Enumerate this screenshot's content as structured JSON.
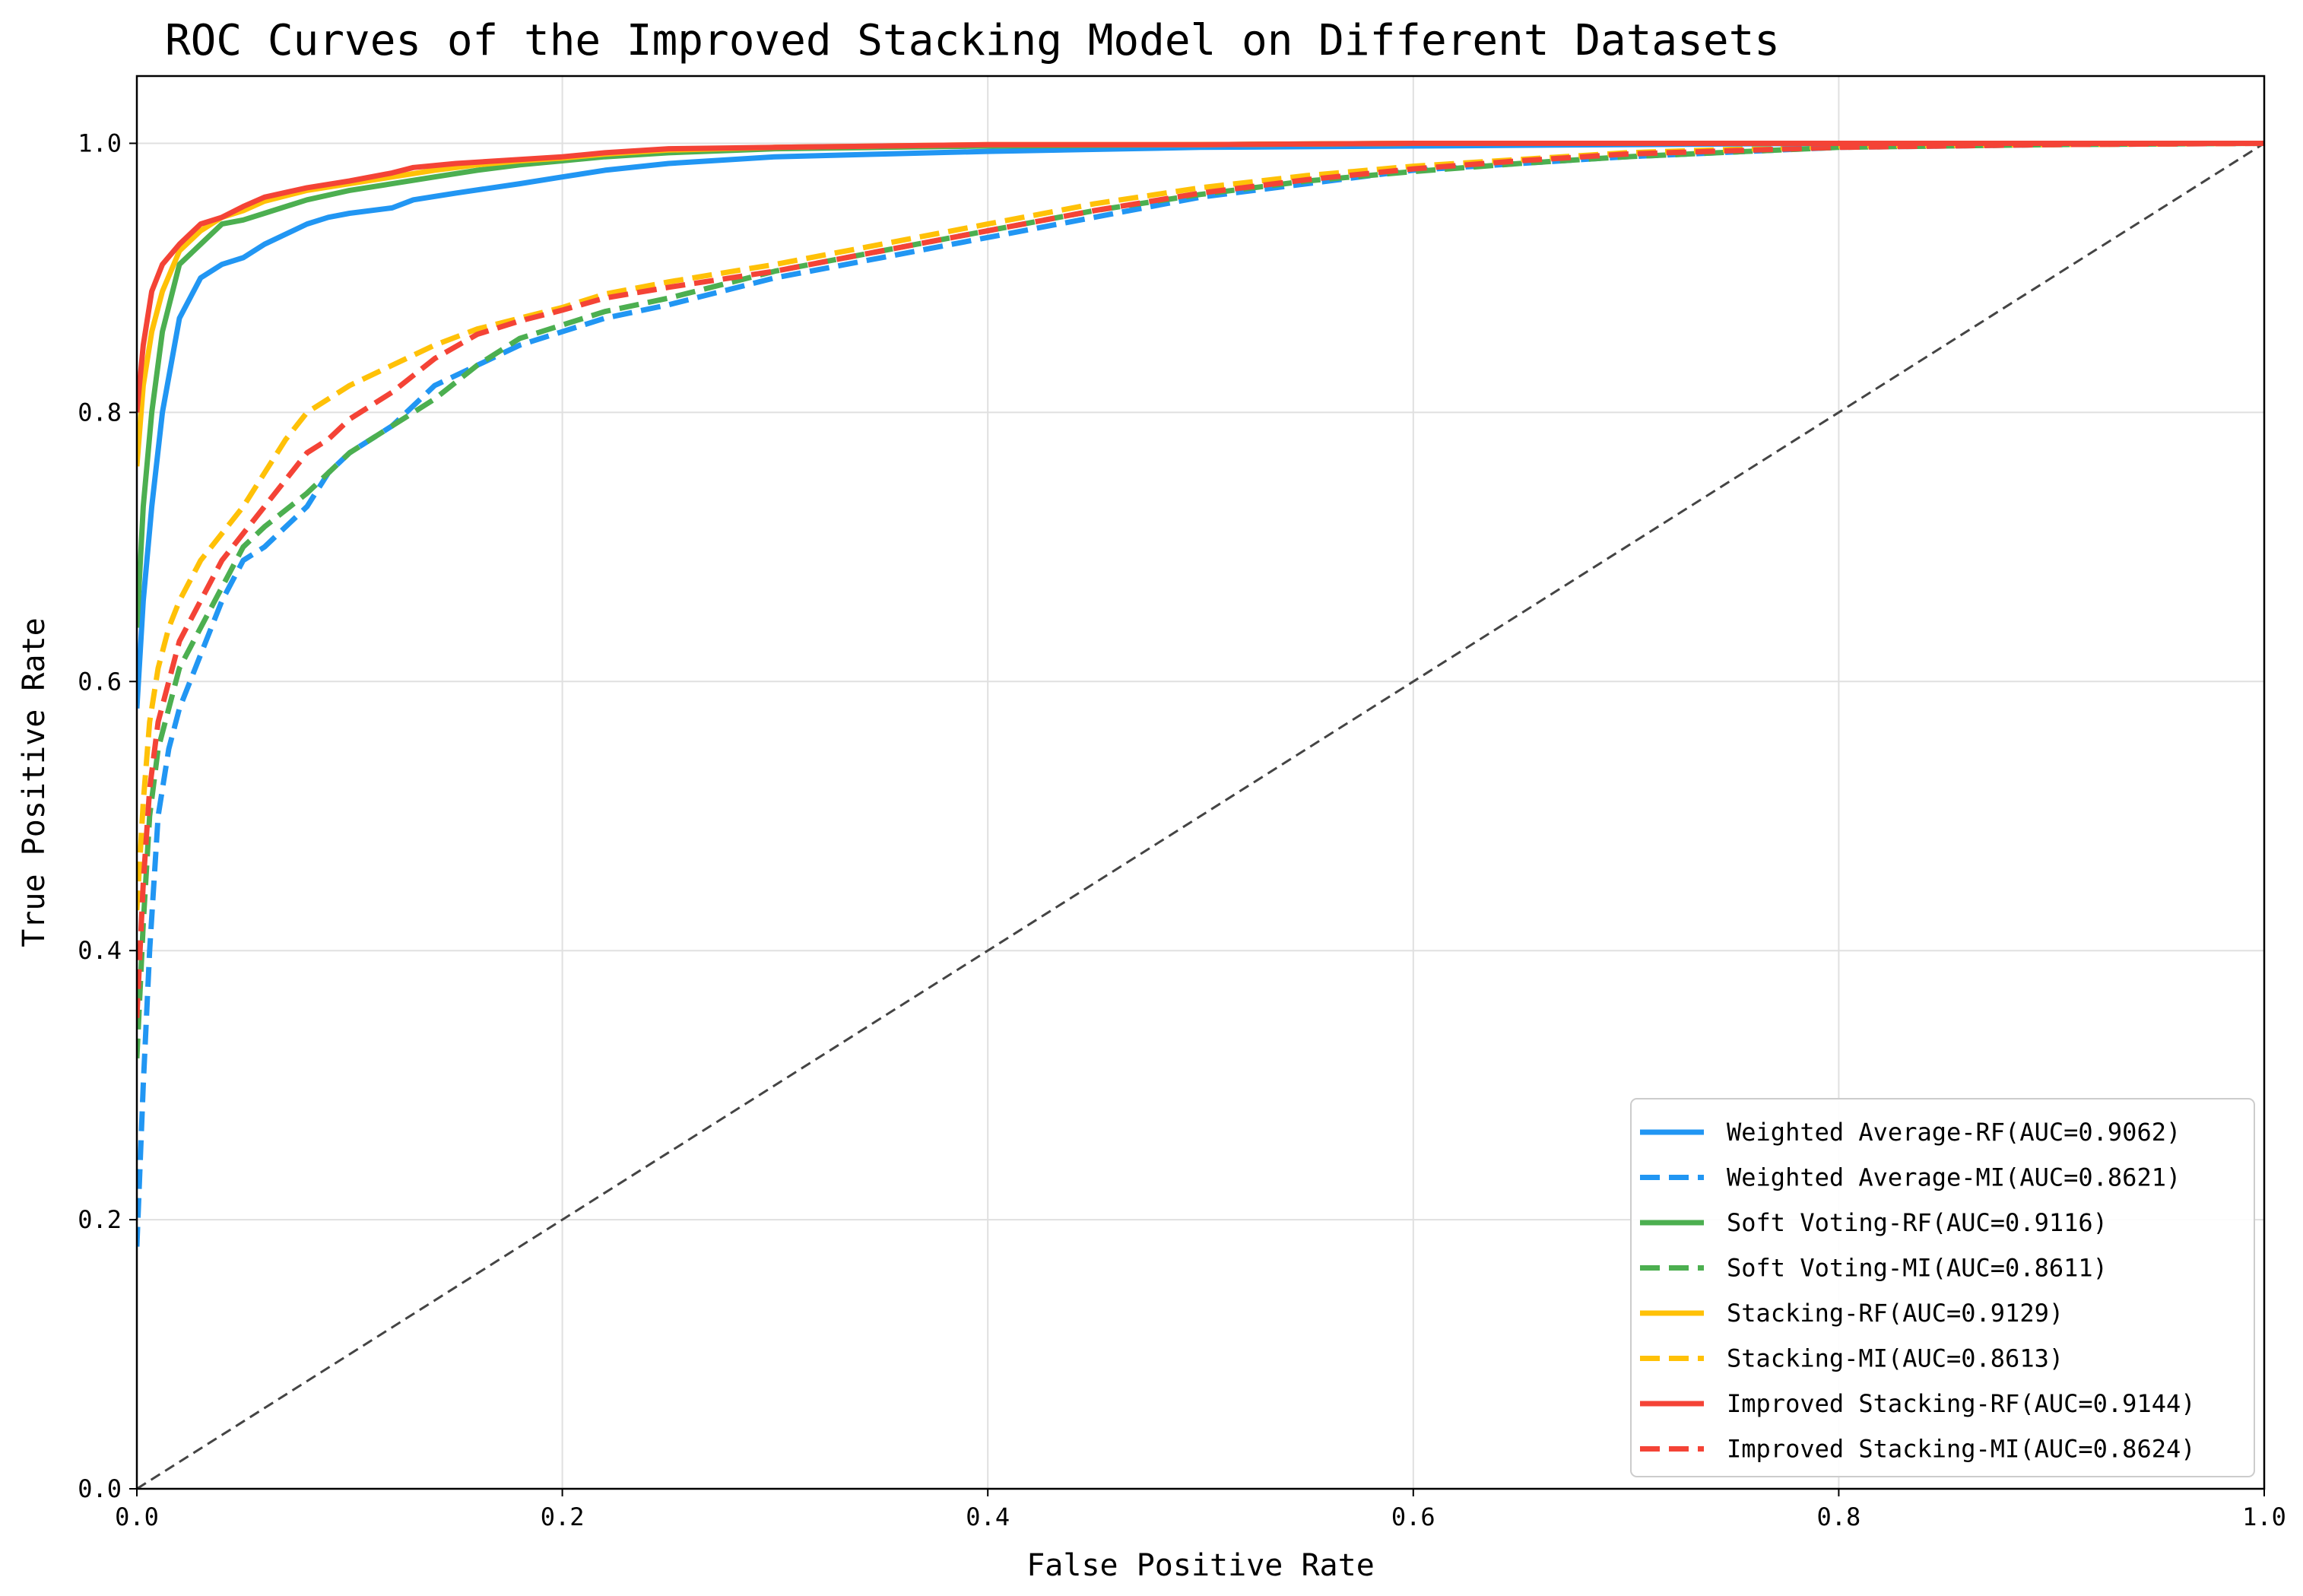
{
  "chart_data": {
    "type": "line",
    "title": "ROC Curves of the Improved Stacking Model on Different Datasets",
    "xlabel": "False Positive Rate",
    "ylabel": "True Positive Rate",
    "xlim": [
      0.0,
      1.0
    ],
    "ylim": [
      0.0,
      1.05
    ],
    "xticks": [
      "0.0",
      "0.2",
      "0.4",
      "0.6",
      "0.8",
      "1.0"
    ],
    "yticks": [
      "0.0",
      "0.2",
      "0.4",
      "0.6",
      "0.8",
      "1.0"
    ],
    "grid": true,
    "legend_position": "lower-right",
    "reference_line": {
      "x": [
        0,
        1
      ],
      "y": [
        0,
        1
      ],
      "color": "#444444",
      "style": "dashed"
    },
    "series": [
      {
        "name": "Weighted Average-RF(AUC=0.9062)",
        "color": "#2196F3",
        "style": "solid",
        "x": [
          0,
          0.003,
          0.007,
          0.012,
          0.02,
          0.03,
          0.04,
          0.05,
          0.06,
          0.08,
          0.09,
          0.1,
          0.12,
          0.13,
          0.15,
          0.18,
          0.2,
          0.22,
          0.25,
          0.28,
          0.3,
          0.35,
          0.4,
          0.5,
          0.6,
          0.7,
          0.8,
          1.0
        ],
        "y": [
          0.58,
          0.66,
          0.73,
          0.8,
          0.87,
          0.9,
          0.91,
          0.915,
          0.925,
          0.94,
          0.945,
          0.948,
          0.952,
          0.958,
          0.963,
          0.97,
          0.975,
          0.98,
          0.985,
          0.988,
          0.99,
          0.992,
          0.994,
          0.997,
          0.998,
          0.999,
          1.0,
          1.0
        ]
      },
      {
        "name": "Weighted Average-MI(AUC=0.8621)",
        "color": "#2196F3",
        "style": "dashed",
        "x": [
          0,
          0.003,
          0.006,
          0.01,
          0.015,
          0.02,
          0.03,
          0.04,
          0.05,
          0.06,
          0.08,
          0.09,
          0.1,
          0.12,
          0.14,
          0.16,
          0.18,
          0.2,
          0.22,
          0.25,
          0.3,
          0.35,
          0.4,
          0.45,
          0.5,
          0.55,
          0.6,
          0.65,
          0.7,
          0.8,
          0.9,
          1.0
        ],
        "y": [
          0.18,
          0.3,
          0.4,
          0.5,
          0.55,
          0.58,
          0.62,
          0.66,
          0.69,
          0.7,
          0.73,
          0.755,
          0.77,
          0.79,
          0.82,
          0.835,
          0.85,
          0.86,
          0.87,
          0.88,
          0.9,
          0.915,
          0.93,
          0.945,
          0.96,
          0.97,
          0.98,
          0.985,
          0.99,
          0.997,
          0.999,
          1.0
        ]
      },
      {
        "name": "Soft Voting-RF(AUC=0.9116)",
        "color": "#4CAF50",
        "style": "solid",
        "x": [
          0,
          0.003,
          0.007,
          0.012,
          0.02,
          0.03,
          0.04,
          0.05,
          0.06,
          0.08,
          0.1,
          0.12,
          0.14,
          0.16,
          0.18,
          0.2,
          0.22,
          0.25,
          0.3,
          0.35,
          0.4,
          0.5,
          0.6,
          0.8,
          1.0
        ],
        "y": [
          0.64,
          0.73,
          0.8,
          0.86,
          0.91,
          0.925,
          0.94,
          0.943,
          0.948,
          0.958,
          0.965,
          0.97,
          0.975,
          0.98,
          0.984,
          0.987,
          0.99,
          0.993,
          0.996,
          0.997,
          0.998,
          0.999,
          1.0,
          1.0,
          1.0
        ]
      },
      {
        "name": "Soft Voting-MI(AUC=0.8611)",
        "color": "#4CAF50",
        "style": "dashed",
        "x": [
          0,
          0.003,
          0.006,
          0.01,
          0.015,
          0.02,
          0.03,
          0.04,
          0.05,
          0.06,
          0.08,
          0.1,
          0.12,
          0.14,
          0.16,
          0.18,
          0.2,
          0.22,
          0.25,
          0.3,
          0.35,
          0.4,
          0.45,
          0.5,
          0.55,
          0.6,
          0.65,
          0.7,
          0.8,
          0.9,
          1.0
        ],
        "y": [
          0.32,
          0.42,
          0.5,
          0.55,
          0.58,
          0.61,
          0.64,
          0.67,
          0.7,
          0.715,
          0.74,
          0.77,
          0.79,
          0.81,
          0.835,
          0.855,
          0.865,
          0.875,
          0.885,
          0.905,
          0.92,
          0.935,
          0.95,
          0.962,
          0.972,
          0.979,
          0.985,
          0.99,
          0.997,
          0.999,
          1.0
        ]
      },
      {
        "name": "Stacking-RF(AUC=0.9129)",
        "color": "#FFC107",
        "style": "solid",
        "x": [
          0,
          0.003,
          0.007,
          0.012,
          0.02,
          0.03,
          0.04,
          0.05,
          0.06,
          0.08,
          0.1,
          0.12,
          0.14,
          0.16,
          0.18,
          0.2,
          0.22,
          0.25,
          0.3,
          0.35,
          0.4,
          0.5,
          0.6,
          0.8,
          1.0
        ],
        "y": [
          0.76,
          0.82,
          0.86,
          0.89,
          0.92,
          0.935,
          0.945,
          0.95,
          0.957,
          0.965,
          0.97,
          0.975,
          0.98,
          0.984,
          0.987,
          0.989,
          0.992,
          0.995,
          0.997,
          0.998,
          0.999,
          0.999,
          1.0,
          1.0,
          1.0
        ]
      },
      {
        "name": "Stacking-MI(AUC=0.8613)",
        "color": "#FFC107",
        "style": "dashed",
        "x": [
          0,
          0.003,
          0.006,
          0.01,
          0.015,
          0.02,
          0.03,
          0.04,
          0.05,
          0.06,
          0.07,
          0.08,
          0.1,
          0.12,
          0.14,
          0.16,
          0.18,
          0.2,
          0.22,
          0.25,
          0.3,
          0.35,
          0.4,
          0.45,
          0.5,
          0.55,
          0.6,
          0.65,
          0.7,
          0.8,
          0.9,
          1.0
        ],
        "y": [
          0.43,
          0.51,
          0.57,
          0.61,
          0.64,
          0.66,
          0.69,
          0.71,
          0.73,
          0.755,
          0.78,
          0.8,
          0.82,
          0.835,
          0.85,
          0.862,
          0.87,
          0.878,
          0.888,
          0.897,
          0.91,
          0.925,
          0.94,
          0.955,
          0.967,
          0.976,
          0.983,
          0.988,
          0.993,
          0.998,
          0.999,
          1.0
        ]
      },
      {
        "name": "Improved Stacking-RF(AUC=0.9144)",
        "color": "#F44336",
        "style": "solid",
        "x": [
          0,
          0.003,
          0.007,
          0.012,
          0.02,
          0.03,
          0.04,
          0.05,
          0.06,
          0.08,
          0.1,
          0.12,
          0.13,
          0.15,
          0.18,
          0.2,
          0.22,
          0.25,
          0.3,
          0.35,
          0.4,
          0.5,
          0.6,
          0.8,
          1.0
        ],
        "y": [
          0.8,
          0.85,
          0.89,
          0.91,
          0.925,
          0.94,
          0.945,
          0.953,
          0.96,
          0.967,
          0.972,
          0.978,
          0.982,
          0.985,
          0.988,
          0.99,
          0.993,
          0.996,
          0.997,
          0.998,
          0.999,
          0.999,
          1.0,
          1.0,
          1.0
        ]
      },
      {
        "name": "Improved Stacking-MI(AUC=0.8624)",
        "color": "#F44336",
        "style": "dashed",
        "x": [
          0,
          0.003,
          0.006,
          0.01,
          0.015,
          0.02,
          0.03,
          0.04,
          0.05,
          0.06,
          0.08,
          0.09,
          0.1,
          0.12,
          0.14,
          0.16,
          0.18,
          0.2,
          0.22,
          0.25,
          0.3,
          0.35,
          0.4,
          0.45,
          0.5,
          0.55,
          0.6,
          0.65,
          0.7,
          0.8,
          0.9,
          1.0
        ],
        "y": [
          0.35,
          0.45,
          0.52,
          0.57,
          0.6,
          0.63,
          0.66,
          0.69,
          0.71,
          0.73,
          0.77,
          0.78,
          0.795,
          0.815,
          0.84,
          0.858,
          0.868,
          0.876,
          0.885,
          0.893,
          0.905,
          0.92,
          0.935,
          0.95,
          0.963,
          0.973,
          0.981,
          0.987,
          0.992,
          0.997,
          0.999,
          1.0
        ]
      }
    ]
  }
}
